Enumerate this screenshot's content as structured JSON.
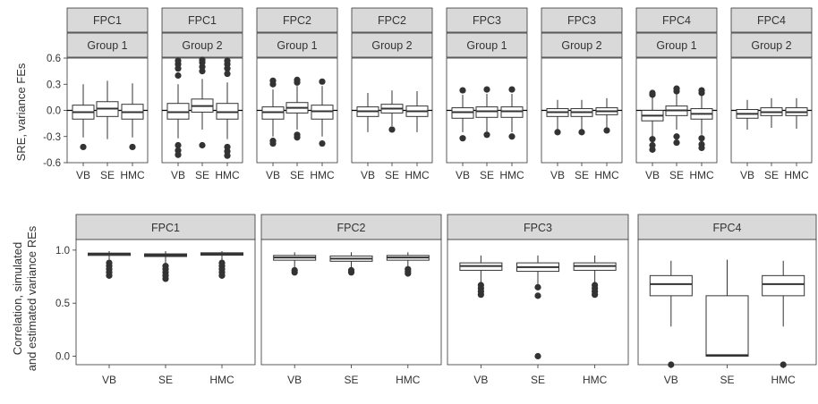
{
  "chart_data": [
    {
      "type": "boxplot",
      "ylabel": "SRE, variance FEs",
      "ylim": [
        -0.6,
        0.6
      ],
      "yticks": [
        -0.6,
        -0.3,
        0.0,
        0.3,
        0.6
      ],
      "ytick_labels": [
        "-0.6",
        "-0.3",
        "0.0",
        "0.3",
        "0.6"
      ],
      "reference_line": 0,
      "categories": [
        "VB",
        "SE",
        "HMC"
      ],
      "panels": [
        {
          "strip_top": "FPC1",
          "strip_bottom": "Group 1",
          "boxes": [
            {
              "label": "VB",
              "lo": -0.31,
              "q1": -0.1,
              "med": -0.02,
              "q3": 0.06,
              "hi": 0.3,
              "out": [
                -0.42
              ]
            },
            {
              "label": "SE",
              "lo": -0.33,
              "q1": -0.07,
              "med": 0.02,
              "q3": 0.1,
              "hi": 0.34,
              "out": []
            },
            {
              "label": "HMC",
              "lo": -0.31,
              "q1": -0.1,
              "med": -0.02,
              "q3": 0.07,
              "hi": 0.31,
              "out": [
                -0.42
              ]
            }
          ]
        },
        {
          "strip_top": "FPC1",
          "strip_bottom": "Group 2",
          "boxes": [
            {
              "label": "VB",
              "lo": -0.32,
              "q1": -0.1,
              "med": -0.02,
              "q3": 0.08,
              "hi": 0.3,
              "out": [
                -0.4,
                -0.46,
                -0.51,
                0.4,
                0.48,
                0.53,
                0.57
              ]
            },
            {
              "label": "SE",
              "lo": -0.22,
              "q1": -0.02,
              "med": 0.05,
              "q3": 0.13,
              "hi": 0.36,
              "out": [
                -0.4,
                0.45,
                0.5,
                0.55,
                0.58
              ]
            },
            {
              "label": "HMC",
              "lo": -0.33,
              "q1": -0.1,
              "med": -0.02,
              "q3": 0.08,
              "hi": 0.32,
              "out": [
                -0.42,
                -0.47,
                -0.52,
                0.42,
                0.48,
                0.53,
                0.57
              ]
            }
          ]
        },
        {
          "strip_top": "FPC2",
          "strip_bottom": "Group 1",
          "boxes": [
            {
              "label": "VB",
              "lo": -0.3,
              "q1": -0.1,
              "med": -0.02,
              "q3": 0.04,
              "hi": 0.24,
              "out": [
                -0.35,
                -0.38,
                0.3,
                0.34
              ]
            },
            {
              "label": "SE",
              "lo": -0.22,
              "q1": -0.03,
              "med": 0.03,
              "q3": 0.09,
              "hi": 0.28,
              "out": [
                -0.28,
                -0.31,
                0.32,
                0.35
              ]
            },
            {
              "label": "HMC",
              "lo": -0.3,
              "q1": -0.1,
              "med": -0.01,
              "q3": 0.06,
              "hi": 0.28,
              "out": [
                -0.38,
                0.33
              ]
            }
          ]
        },
        {
          "strip_top": "FPC2",
          "strip_bottom": "Group 2",
          "boxes": [
            {
              "label": "VB",
              "lo": -0.25,
              "q1": -0.07,
              "med": -0.01,
              "q3": 0.04,
              "hi": 0.2,
              "out": []
            },
            {
              "label": "SE",
              "lo": -0.18,
              "q1": -0.03,
              "med": 0.02,
              "q3": 0.07,
              "hi": 0.23,
              "out": [
                -0.22
              ]
            },
            {
              "label": "HMC",
              "lo": -0.25,
              "q1": -0.07,
              "med": -0.01,
              "q3": 0.05,
              "hi": 0.22,
              "out": []
            }
          ]
        },
        {
          "strip_top": "FPC3",
          "strip_bottom": "Group 1",
          "boxes": [
            {
              "label": "VB",
              "lo": -0.25,
              "q1": -0.09,
              "med": -0.02,
              "q3": 0.03,
              "hi": 0.18,
              "out": [
                -0.32,
                0.23
              ]
            },
            {
              "label": "SE",
              "lo": -0.25,
              "q1": -0.08,
              "med": -0.01,
              "q3": 0.04,
              "hi": 0.19,
              "out": [
                -0.28,
                0.24
              ]
            },
            {
              "label": "HMC",
              "lo": -0.25,
              "q1": -0.08,
              "med": -0.01,
              "q3": 0.04,
              "hi": 0.19,
              "out": [
                -0.3,
                0.24
              ]
            }
          ]
        },
        {
          "strip_top": "FPC3",
          "strip_bottom": "Group 2",
          "boxes": [
            {
              "label": "VB",
              "lo": -0.22,
              "q1": -0.07,
              "med": -0.02,
              "q3": 0.02,
              "hi": 0.12,
              "out": [
                -0.25
              ]
            },
            {
              "label": "SE",
              "lo": -0.22,
              "q1": -0.07,
              "med": -0.02,
              "q3": 0.02,
              "hi": 0.12,
              "out": [
                -0.25
              ]
            },
            {
              "label": "HMC",
              "lo": -0.2,
              "q1": -0.05,
              "med": -0.01,
              "q3": 0.03,
              "hi": 0.14,
              "out": [
                -0.23
              ]
            }
          ]
        },
        {
          "strip_top": "FPC4",
          "strip_bottom": "Group 1",
          "boxes": [
            {
              "label": "VB",
              "lo": -0.3,
              "q1": -0.12,
              "med": -0.06,
              "q3": 0.0,
              "hi": 0.17,
              "out": [
                -0.33,
                -0.4,
                -0.45,
                0.18,
                0.2
              ]
            },
            {
              "label": "SE",
              "lo": -0.22,
              "q1": -0.06,
              "med": 0.0,
              "q3": 0.05,
              "hi": 0.2,
              "out": [
                -0.3,
                -0.37,
                0.22,
                0.25
              ]
            },
            {
              "label": "HMC",
              "lo": -0.28,
              "q1": -0.1,
              "med": -0.04,
              "q3": 0.02,
              "hi": 0.19,
              "out": [
                -0.32,
                -0.39,
                -0.43,
                0.2,
                0.23
              ]
            }
          ]
        },
        {
          "strip_top": "FPC4",
          "strip_bottom": "Group 2",
          "boxes": [
            {
              "label": "VB",
              "lo": -0.22,
              "q1": -0.09,
              "med": -0.04,
              "q3": 0.01,
              "hi": 0.12,
              "out": []
            },
            {
              "label": "SE",
              "lo": -0.2,
              "q1": -0.06,
              "med": -0.02,
              "q3": 0.03,
              "hi": 0.14,
              "out": []
            },
            {
              "label": "HMC",
              "lo": -0.21,
              "q1": -0.06,
              "med": -0.02,
              "q3": 0.03,
              "hi": 0.14,
              "out": []
            }
          ]
        }
      ]
    },
    {
      "type": "boxplot",
      "ylabel_lines": [
        "Correlation, simulated",
        "and estimated variance REs"
      ],
      "ylim": [
        -0.08,
        1.1
      ],
      "yticks": [
        0.0,
        0.5,
        1.0
      ],
      "ytick_labels": [
        "0.0",
        "0.5",
        "1.0"
      ],
      "categories": [
        "VB",
        "SE",
        "HMC"
      ],
      "panels": [
        {
          "strip_top": "FPC1",
          "boxes": [
            {
              "label": "VB",
              "lo": 0.9,
              "q1": 0.95,
              "med": 0.962,
              "q3": 0.972,
              "hi": 0.99,
              "out": [
                0.76,
                0.79,
                0.82,
                0.85,
                0.88
              ]
            },
            {
              "label": "SE",
              "lo": 0.88,
              "q1": 0.94,
              "med": 0.953,
              "q3": 0.965,
              "hi": 0.99,
              "out": [
                0.73,
                0.76,
                0.79,
                0.82,
                0.85
              ]
            },
            {
              "label": "HMC",
              "lo": 0.9,
              "q1": 0.952,
              "med": 0.965,
              "q3": 0.975,
              "hi": 0.99,
              "out": [
                0.76,
                0.79,
                0.82,
                0.85,
                0.88
              ]
            }
          ]
        },
        {
          "strip_top": "FPC2",
          "boxes": [
            {
              "label": "VB",
              "lo": 0.84,
              "q1": 0.905,
              "med": 0.93,
              "q3": 0.95,
              "hi": 0.98,
              "out": [
                0.79,
                0.81
              ]
            },
            {
              "label": "SE",
              "lo": 0.83,
              "q1": 0.895,
              "med": 0.92,
              "q3": 0.945,
              "hi": 0.98,
              "out": [
                0.79,
                0.81
              ]
            },
            {
              "label": "HMC",
              "lo": 0.84,
              "q1": 0.905,
              "med": 0.93,
              "q3": 0.95,
              "hi": 0.98,
              "out": [
                0.78,
                0.8,
                0.82
              ]
            }
          ]
        },
        {
          "strip_top": "FPC3",
          "boxes": [
            {
              "label": "VB",
              "lo": 0.69,
              "q1": 0.81,
              "med": 0.85,
              "q3": 0.88,
              "hi": 0.95,
              "out": [
                0.58,
                0.61,
                0.64,
                0.67
              ]
            },
            {
              "label": "SE",
              "lo": 0.68,
              "q1": 0.8,
              "med": 0.84,
              "q3": 0.88,
              "hi": 0.95,
              "out": [
                0.0,
                0.57,
                0.65
              ]
            },
            {
              "label": "HMC",
              "lo": 0.69,
              "q1": 0.81,
              "med": 0.85,
              "q3": 0.88,
              "hi": 0.95,
              "out": [
                0.58,
                0.61,
                0.64,
                0.67
              ]
            }
          ]
        },
        {
          "strip_top": "FPC4",
          "boxes": [
            {
              "label": "VB",
              "lo": 0.28,
              "q1": 0.57,
              "med": 0.68,
              "q3": 0.76,
              "hi": 0.9,
              "out": [
                -0.08
              ]
            },
            {
              "label": "SE",
              "lo": 0.0,
              "q1": 0.0,
              "med": 0.01,
              "q3": 0.57,
              "hi": 0.91,
              "out": []
            },
            {
              "label": "HMC",
              "lo": 0.28,
              "q1": 0.57,
              "med": 0.68,
              "q3": 0.76,
              "hi": 0.9,
              "out": [
                -0.08
              ]
            }
          ]
        }
      ]
    }
  ]
}
